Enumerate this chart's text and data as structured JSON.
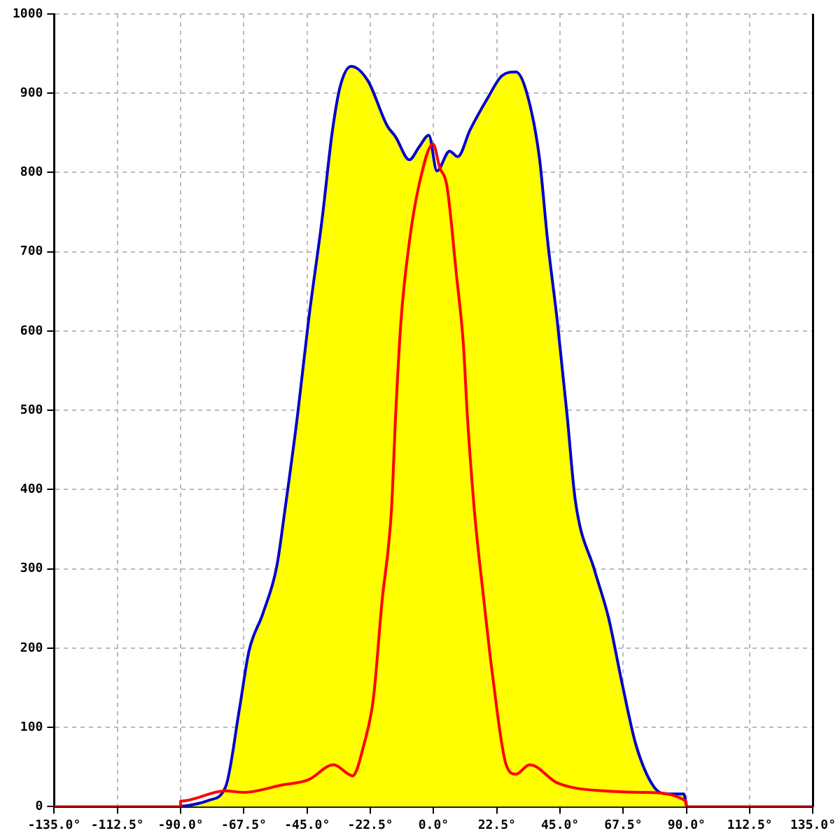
{
  "chart_data": {
    "type": "line",
    "xlim": [
      -135,
      135
    ],
    "xticks": [
      {
        "value": -135,
        "label": "-135.0°"
      },
      {
        "value": -112.5,
        "label": "-112.5°"
      },
      {
        "value": -90,
        "label": "-90.0°"
      },
      {
        "value": -67.5,
        "label": "-67.5°"
      },
      {
        "value": -45,
        "label": "-45.0°"
      },
      {
        "value": -22.5,
        "label": "-22.5°"
      },
      {
        "value": 0,
        "label": "0.0°"
      },
      {
        "value": 22.5,
        "label": "22.5°"
      },
      {
        "value": 45,
        "label": "45.0°"
      },
      {
        "value": 67.5,
        "label": "67.5°"
      },
      {
        "value": 90,
        "label": "90.0°"
      },
      {
        "value": 112.5,
        "label": "112.5°"
      },
      {
        "value": 135,
        "label": "135.0°"
      }
    ],
    "ylim": [
      0,
      1000
    ],
    "yticks": [
      0,
      100,
      200,
      300,
      400,
      500,
      600,
      700,
      800,
      900,
      1000
    ],
    "grid": true,
    "series": [
      {
        "type": "area",
        "color": "#ffff00",
        "x": [
          -90,
          -85,
          -80,
          -74,
          -69,
          -65.7,
          -60.7,
          -55.8,
          -52.9,
          -48.4,
          -44.5,
          -39.6,
          -36.1,
          -33.2,
          -29.3,
          -23.4,
          -16.5,
          -13.5,
          -8.6,
          -5.2,
          -1.7,
          1.2,
          5.7,
          8.6,
          13,
          19.4,
          24.3,
          29.3,
          33.2,
          37.6,
          40.6,
          44,
          47.5,
          50.4,
          57.3,
          62.2,
          67.1,
          72,
          78.4,
          83.4,
          89,
          90
        ],
        "values": [
          0,
          3,
          8,
          25,
          125,
          196,
          244,
          303,
          374,
          494,
          613,
          743,
          850,
          909,
          934,
          916,
          859,
          845,
          816,
          832,
          847,
          802,
          827,
          820,
          854,
          895,
          922,
          927,
          900,
          820,
          713,
          613,
          494,
          387,
          298,
          239,
          155,
          78,
          25,
          16,
          16,
          0
        ]
      },
      {
        "color": "#ff0000",
        "x": [
          -135,
          -90,
          -90,
          -74,
          -67.6,
          -54.3,
          -44.5,
          -35.6,
          -28.8,
          -24.8,
          -21.4,
          -18.4,
          -15,
          -13.5,
          -11.6,
          -8.6,
          -5.2,
          -0.2,
          2.2,
          4.7,
          8.1,
          10.6,
          12,
          14.5,
          18,
          20.9,
          25.8,
          29.3,
          34.2,
          44,
          60.2,
          75,
          89.8,
          90,
          135
        ],
        "values": [
          0,
          0,
          7,
          20,
          18,
          27,
          34,
          53,
          39,
          78,
          137,
          257,
          374,
          494,
          613,
          713,
          784,
          836,
          806,
          784,
          672,
          583,
          494,
          374,
          257,
          168,
          53,
          41,
          53,
          30,
          20,
          18,
          7,
          0,
          0
        ]
      }
    ]
  }
}
